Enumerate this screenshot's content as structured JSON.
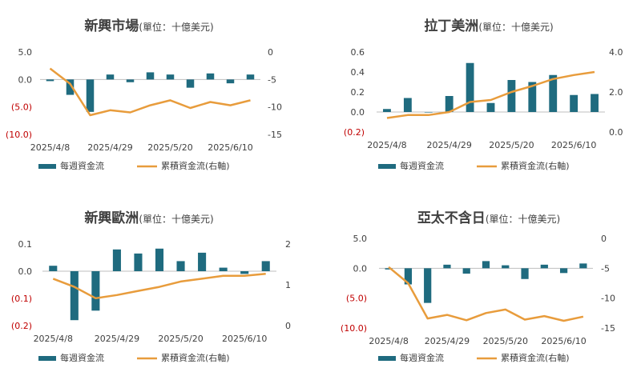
{
  "colors": {
    "bar": "#1f6b7f",
    "line": "#e89c3c",
    "axis": "#bfbfbf",
    "text": "#404040",
    "negative": "#c00000"
  },
  "legend": {
    "bar_label": "每週資金流",
    "line_label": "累積資金流(右軸)"
  },
  "chart_data": [
    {
      "type": "bar",
      "title": "新興市場",
      "subtitle": "(單位：十億美元)",
      "x_tick_labels": [
        "2025/4/8",
        "2025/4/29",
        "2025/5/20",
        "2025/6/10"
      ],
      "left_axis": {
        "ylim": [
          -10,
          5
        ],
        "ticks": [
          5,
          0,
          -5,
          -10
        ],
        "tick_labels": [
          "5.0",
          "0.0",
          "(5.0)",
          "(10.0)"
        ]
      },
      "right_axis": {
        "ylim": [
          -15,
          0
        ],
        "ticks": [
          0,
          -5,
          -10,
          -15
        ],
        "tick_labels": [
          "0",
          "-5",
          "-10",
          "-15"
        ]
      },
      "categories": [
        "2025/4/8",
        "2025/4/15",
        "2025/4/22",
        "2025/4/29",
        "2025/5/6",
        "2025/5/13",
        "2025/5/20",
        "2025/5/27",
        "2025/6/3",
        "2025/6/10",
        "2025/6/17"
      ],
      "series": [
        {
          "type": "bar",
          "axis": "left",
          "values": [
            -0.3,
            -2.8,
            -5.9,
            0.9,
            -0.5,
            1.3,
            0.9,
            -1.5,
            1.1,
            -0.7,
            0.9
          ]
        },
        {
          "type": "line",
          "axis": "right",
          "values": [
            -3.0,
            -5.8,
            -11.5,
            -10.6,
            -11.0,
            -9.7,
            -8.8,
            -10.2,
            -9.1,
            -9.7,
            -8.8
          ]
        }
      ]
    },
    {
      "type": "bar",
      "title": "拉丁美洲",
      "subtitle": "(單位：十億美元)",
      "x_tick_labels": [
        "2025/4/8",
        "2025/4/29",
        "2025/5/20",
        "2025/6/10"
      ],
      "left_axis": {
        "ylim": [
          -0.2,
          0.6
        ],
        "ticks": [
          0.6,
          0.4,
          0.2,
          0,
          -0.2
        ],
        "tick_labels": [
          "0.6",
          "0.4",
          "0.2",
          "0.0",
          "(0.2)"
        ]
      },
      "right_axis": {
        "ylim": [
          0,
          4
        ],
        "ticks": [
          4,
          2,
          0
        ],
        "tick_labels": [
          "4.0",
          "2.0",
          "0.0"
        ]
      },
      "categories": [
        "2025/4/8",
        "2025/4/15",
        "2025/4/22",
        "2025/4/29",
        "2025/5/6",
        "2025/5/13",
        "2025/5/20",
        "2025/5/27",
        "2025/6/3",
        "2025/6/10",
        "2025/6/17"
      ],
      "series": [
        {
          "type": "bar",
          "axis": "left",
          "values": [
            0.03,
            0.14,
            0.0,
            0.16,
            0.49,
            0.09,
            0.32,
            0.3,
            0.37,
            0.17,
            0.18
          ]
        },
        {
          "type": "line",
          "axis": "right",
          "values": [
            0.7,
            0.85,
            0.85,
            1.0,
            1.5,
            1.6,
            2.0,
            2.3,
            2.65,
            2.85,
            3.0
          ]
        }
      ]
    },
    {
      "type": "bar",
      "title": "新興歐洲",
      "subtitle": "(單位：十億美元)",
      "x_tick_labels": [
        "2025/4/8",
        "2025/4/29",
        "2025/5/20",
        "2025/6/10"
      ],
      "left_axis": {
        "ylim": [
          -0.2,
          0.1
        ],
        "ticks": [
          0.1,
          0,
          -0.1,
          -0.2
        ],
        "tick_labels": [
          "0.1",
          "0.0",
          "(0.1)",
          "(0.2)"
        ]
      },
      "right_axis": {
        "ylim": [
          0,
          2
        ],
        "ticks": [
          2,
          1,
          0
        ],
        "tick_labels": [
          "2",
          "1",
          "0"
        ]
      },
      "categories": [
        "2025/4/8",
        "2025/4/15",
        "2025/4/22",
        "2025/4/29",
        "2025/5/6",
        "2025/5/13",
        "2025/5/20",
        "2025/5/27",
        "2025/6/3",
        "2025/6/10",
        "2025/6/17"
      ],
      "series": [
        {
          "type": "bar",
          "axis": "left",
          "values": [
            0.02,
            -0.18,
            -0.145,
            0.08,
            0.065,
            0.083,
            0.037,
            0.068,
            0.013,
            -0.01,
            0.037
          ]
        },
        {
          "type": "line",
          "axis": "right",
          "values": [
            1.15,
            0.95,
            0.67,
            0.75,
            0.85,
            0.95,
            1.08,
            1.15,
            1.22,
            1.22,
            1.27
          ]
        }
      ]
    },
    {
      "type": "bar",
      "title": "亞太不含日",
      "subtitle": "(單位：十億美元)",
      "x_tick_labels": [
        "2025/4/8",
        "2025/4/29",
        "2025/5/20",
        "2025/6/10"
      ],
      "left_axis": {
        "ylim": [
          -10,
          5
        ],
        "ticks": [
          5,
          0,
          -5,
          -10
        ],
        "tick_labels": [
          "5.0",
          "0.0",
          "(5.0)",
          "(10.0)"
        ]
      },
      "right_axis": {
        "ylim": [
          -15,
          0
        ],
        "ticks": [
          0,
          -5,
          -10,
          -15
        ],
        "tick_labels": [
          "0",
          "-5",
          "-10",
          "-15"
        ]
      },
      "categories": [
        "2025/4/8",
        "2025/4/15",
        "2025/4/22",
        "2025/4/29",
        "2025/5/6",
        "2025/5/13",
        "2025/5/20",
        "2025/5/27",
        "2025/6/3",
        "2025/6/10",
        "2025/6/17"
      ],
      "series": [
        {
          "type": "bar",
          "axis": "left",
          "values": [
            -0.2,
            -2.7,
            -5.8,
            0.6,
            -0.9,
            1.2,
            0.5,
            -1.8,
            0.6,
            -0.8,
            0.8
          ]
        },
        {
          "type": "line",
          "axis": "right",
          "values": [
            -4.8,
            -7.5,
            -13.4,
            -12.8,
            -13.7,
            -12.5,
            -11.9,
            -13.6,
            -13.0,
            -13.8,
            -13.1
          ]
        }
      ]
    }
  ]
}
